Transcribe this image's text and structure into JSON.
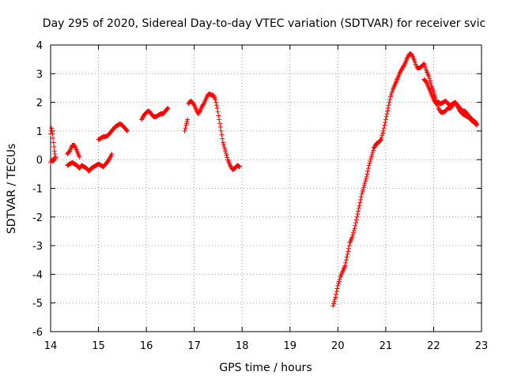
{
  "chart_data": {
    "type": "scatter",
    "title": "Day 295 of 2020, Sidereal Day-to-day VTEC variation (SDTVAR) for receiver svic",
    "xlabel": "GPS time / hours",
    "ylabel": "SDTVAR / TECUs",
    "xlim": [
      14,
      23
    ],
    "ylim": [
      -6,
      4
    ],
    "x_ticks": [
      14,
      15,
      16,
      17,
      18,
      19,
      20,
      21,
      22,
      23
    ],
    "y_ticks": [
      -6,
      -5,
      -4,
      -3,
      -2,
      -1,
      0,
      1,
      2,
      3,
      4
    ],
    "x_tick_labels": [
      "14",
      "15",
      "16",
      "17",
      "18",
      "19",
      "20",
      "21",
      "22",
      "23"
    ],
    "y_tick_labels": [
      "-6",
      "-5",
      "-4",
      "-3",
      "-2",
      "-1",
      "0",
      "1",
      "2",
      "3",
      "4"
    ],
    "grid": true,
    "marker": "+",
    "colors": {
      "series": "#ff0000",
      "grid": "#a0a0a0",
      "axis": "#000000"
    },
    "series": [
      {
        "name": "SDTVAR",
        "segments": [
          [
            [
              14.0,
              0.9
            ],
            [
              14.02,
              1.1
            ],
            [
              14.04,
              0.9
            ],
            [
              14.06,
              0.6
            ],
            [
              14.08,
              0.3
            ],
            [
              14.1,
              0.1
            ]
          ],
          [
            [
              14.0,
              -0.1
            ],
            [
              14.03,
              0.0
            ],
            [
              14.06,
              -0.05
            ],
            [
              14.08,
              0.05
            ],
            [
              14.1,
              0.05
            ]
          ],
          [
            [
              14.35,
              0.2
            ],
            [
              14.4,
              0.3
            ],
            [
              14.45,
              0.5
            ],
            [
              14.5,
              0.5
            ],
            [
              14.55,
              0.3
            ],
            [
              14.6,
              0.1
            ]
          ],
          [
            [
              14.35,
              -0.2
            ],
            [
              14.4,
              -0.15
            ],
            [
              14.45,
              -0.1
            ],
            [
              14.5,
              -0.15
            ],
            [
              14.55,
              -0.2
            ],
            [
              14.6,
              -0.3
            ],
            [
              14.65,
              -0.2
            ],
            [
              14.7,
              -0.25
            ],
            [
              14.75,
              -0.3
            ],
            [
              14.8,
              -0.4
            ],
            [
              14.85,
              -0.3
            ],
            [
              14.9,
              -0.25
            ],
            [
              14.95,
              -0.2
            ],
            [
              15.0,
              -0.15
            ],
            [
              15.05,
              -0.2
            ],
            [
              15.1,
              -0.25
            ],
            [
              15.15,
              -0.15
            ],
            [
              15.2,
              -0.05
            ],
            [
              15.25,
              0.1
            ],
            [
              15.28,
              0.2
            ]
          ],
          [
            [
              15.0,
              0.7
            ],
            [
              15.05,
              0.75
            ],
            [
              15.1,
              0.8
            ],
            [
              15.15,
              0.8
            ],
            [
              15.2,
              0.85
            ],
            [
              15.25,
              0.95
            ],
            [
              15.3,
              1.05
            ],
            [
              15.35,
              1.15
            ],
            [
              15.4,
              1.2
            ],
            [
              15.45,
              1.25
            ],
            [
              15.5,
              1.2
            ],
            [
              15.55,
              1.1
            ],
            [
              15.6,
              1.0
            ]
          ],
          [
            [
              15.9,
              1.4
            ],
            [
              15.95,
              1.55
            ],
            [
              16.0,
              1.65
            ],
            [
              16.05,
              1.7
            ],
            [
              16.1,
              1.6
            ],
            [
              16.15,
              1.5
            ],
            [
              16.2,
              1.5
            ],
            [
              16.25,
              1.55
            ],
            [
              16.3,
              1.6
            ],
            [
              16.35,
              1.6
            ],
            [
              16.4,
              1.7
            ],
            [
              16.45,
              1.8
            ]
          ],
          [
            [
              16.8,
              1.0
            ],
            [
              16.83,
              1.2
            ],
            [
              16.86,
              1.4
            ]
          ],
          [
            [
              16.88,
              1.95
            ],
            [
              16.92,
              2.05
            ],
            [
              16.96,
              2.0
            ],
            [
              17.0,
              1.9
            ],
            [
              17.04,
              1.75
            ],
            [
              17.08,
              1.6
            ],
            [
              17.12,
              1.7
            ],
            [
              17.16,
              1.85
            ],
            [
              17.2,
              1.95
            ],
            [
              17.24,
              2.1
            ],
            [
              17.28,
              2.25
            ],
            [
              17.32,
              2.3
            ],
            [
              17.36,
              2.25
            ],
            [
              17.4,
              2.25
            ],
            [
              17.44,
              2.1
            ],
            [
              17.48,
              1.8
            ],
            [
              17.52,
              1.4
            ],
            [
              17.56,
              1.0
            ],
            [
              17.6,
              0.6
            ],
            [
              17.65,
              0.3
            ],
            [
              17.7,
              0.0
            ],
            [
              17.75,
              -0.2
            ],
            [
              17.8,
              -0.35
            ],
            [
              17.85,
              -0.3
            ],
            [
              17.9,
              -0.2
            ],
            [
              17.95,
              -0.25
            ]
          ],
          [
            [
              19.9,
              -5.1
            ],
            [
              19.95,
              -4.8
            ],
            [
              20.0,
              -4.4
            ],
            [
              20.05,
              -4.1
            ],
            [
              20.1,
              -3.9
            ],
            [
              20.15,
              -3.7
            ],
            [
              20.2,
              -3.3
            ],
            [
              20.25,
              -2.9
            ],
            [
              20.3,
              -2.7
            ],
            [
              20.35,
              -2.4
            ],
            [
              20.4,
              -2.0
            ],
            [
              20.45,
              -1.6
            ],
            [
              20.5,
              -1.2
            ],
            [
              20.55,
              -0.9
            ],
            [
              20.6,
              -0.6
            ],
            [
              20.65,
              -0.2
            ],
            [
              20.7,
              0.1
            ],
            [
              20.75,
              0.4
            ],
            [
              20.8,
              0.55
            ],
            [
              20.85,
              0.6
            ],
            [
              20.9,
              0.7
            ],
            [
              20.95,
              1.0
            ],
            [
              21.0,
              1.4
            ],
            [
              21.05,
              1.8
            ],
            [
              21.1,
              2.2
            ],
            [
              21.15,
              2.45
            ],
            [
              21.2,
              2.65
            ],
            [
              21.25,
              2.85
            ],
            [
              21.3,
              3.05
            ],
            [
              21.35,
              3.2
            ],
            [
              21.4,
              3.35
            ],
            [
              21.45,
              3.55
            ],
            [
              21.5,
              3.7
            ],
            [
              21.55,
              3.65
            ],
            [
              21.6,
              3.45
            ],
            [
              21.65,
              3.2
            ],
            [
              21.7,
              3.2
            ],
            [
              21.75,
              3.25
            ],
            [
              21.8,
              3.35
            ],
            [
              21.85,
              3.1
            ],
            [
              21.9,
              2.9
            ],
            [
              21.95,
              2.6
            ],
            [
              22.0,
              2.35
            ],
            [
              22.05,
              2.1
            ],
            [
              22.1,
              1.8
            ],
            [
              22.15,
              1.65
            ],
            [
              22.2,
              1.65
            ],
            [
              22.25,
              1.7
            ],
            [
              22.3,
              1.8
            ],
            [
              22.35,
              1.8
            ],
            [
              22.4,
              1.9
            ],
            [
              22.45,
              2.0
            ],
            [
              22.5,
              1.9
            ],
            [
              22.55,
              1.8
            ],
            [
              22.6,
              1.7
            ],
            [
              22.65,
              1.7
            ],
            [
              22.7,
              1.6
            ],
            [
              22.75,
              1.5
            ],
            [
              22.8,
              1.4
            ],
            [
              22.85,
              1.35
            ],
            [
              22.9,
              1.25
            ]
          ],
          [
            [
              21.8,
              2.8
            ],
            [
              21.85,
              2.7
            ],
            [
              21.9,
              2.5
            ],
            [
              21.95,
              2.3
            ],
            [
              22.0,
              2.1
            ],
            [
              22.05,
              1.95
            ],
            [
              22.1,
              2.0
            ],
            [
              22.15,
              1.95
            ],
            [
              22.2,
              2.0
            ],
            [
              22.25,
              2.05
            ],
            [
              22.3,
              1.95
            ],
            [
              22.35,
              1.9
            ],
            [
              22.4,
              1.95
            ],
            [
              22.45,
              2.0
            ],
            [
              22.5,
              1.85
            ],
            [
              22.55,
              1.7
            ],
            [
              22.6,
              1.6
            ],
            [
              22.65,
              1.55
            ],
            [
              22.7,
              1.5
            ],
            [
              22.75,
              1.45
            ],
            [
              22.8,
              1.35
            ],
            [
              22.85,
              1.3
            ],
            [
              22.9,
              1.2
            ]
          ]
        ]
      }
    ]
  }
}
